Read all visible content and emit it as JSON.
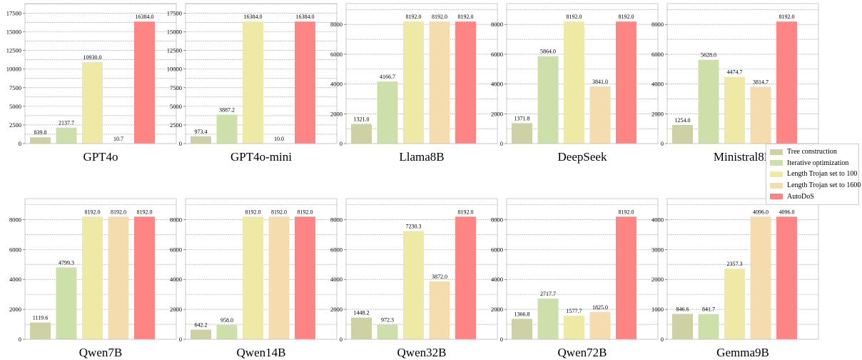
{
  "legend": {
    "items": [
      {
        "label": "Tree construction",
        "color": "#cdd1a4"
      },
      {
        "label": "Iterative optimization",
        "color": "#cde0aa"
      },
      {
        "label": "Length Trojan set to 100",
        "color": "#efe9a6"
      },
      {
        "label": "Length Trojan set to 1600",
        "color": "#f4dcae"
      },
      {
        "label": "AutoDoS",
        "color": "#ff8484"
      }
    ],
    "placement": "right"
  },
  "chart_data": [
    {
      "type": "bar",
      "title": "GPT4o",
      "series": [
        {
          "name": "Tree construction",
          "values": [
            839.8
          ]
        },
        {
          "name": "Iterative optimization",
          "values": [
            2137.7
          ]
        },
        {
          "name": "Length Trojan set to 100",
          "values": [
            10930.0
          ]
        },
        {
          "name": "Length Trojan set to 1600",
          "values": [
            10.7
          ]
        },
        {
          "name": "AutoDoS",
          "values": [
            16384.0
          ]
        }
      ],
      "value_labels": [
        "839.8",
        "2137.7",
        "10930.0",
        "10.7",
        "16384.0"
      ],
      "ylim": [
        0,
        18800
      ],
      "yticks": [
        "0",
        "2500",
        "5000",
        "7500",
        "10000",
        "12500",
        "15000",
        "17500"
      ],
      "ytick_values": [
        0,
        2500,
        5000,
        7500,
        10000,
        12500,
        15000,
        17500
      ],
      "grid": "horizontal-dashed"
    },
    {
      "type": "bar",
      "title": "GPT4o-mini",
      "series": [
        {
          "name": "Tree construction",
          "values": [
            973.4
          ]
        },
        {
          "name": "Iterative optimization",
          "values": [
            3887.2
          ]
        },
        {
          "name": "Length Trojan set to 100",
          "values": [
            16384.0
          ]
        },
        {
          "name": "Length Trojan set to 1600",
          "values": [
            10.0
          ]
        },
        {
          "name": "AutoDoS",
          "values": [
            16384.0
          ]
        }
      ],
      "value_labels": [
        "973.4",
        "3887.2",
        "16384.0",
        "10.0",
        "16384.0"
      ],
      "ylim": [
        0,
        18800
      ],
      "yticks": [
        "0",
        "2500",
        "5000",
        "7500",
        "10000",
        "12500",
        "15000",
        "17500"
      ],
      "ytick_values": [
        0,
        2500,
        5000,
        7500,
        10000,
        12500,
        15000,
        17500
      ],
      "grid": "horizontal-dashed"
    },
    {
      "type": "bar",
      "title": "Llama8B",
      "series": [
        {
          "name": "Tree construction",
          "values": [
            1321.0
          ]
        },
        {
          "name": "Iterative optimization",
          "values": [
            4166.7
          ]
        },
        {
          "name": "Length Trojan set to 100",
          "values": [
            8192.0
          ]
        },
        {
          "name": "Length Trojan set to 1600",
          "values": [
            8192.0
          ]
        },
        {
          "name": "AutoDoS",
          "values": [
            8192.0
          ]
        }
      ],
      "value_labels": [
        "1321.0",
        "4166.7",
        "8192.0",
        "8192.0",
        "8192.0"
      ],
      "ylim": [
        0,
        9400
      ],
      "yticks": [
        "0",
        "2000",
        "4000",
        "6000",
        "8000"
      ],
      "ytick_values": [
        0,
        2000,
        4000,
        6000,
        8000
      ],
      "grid": "horizontal-dashed"
    },
    {
      "type": "bar",
      "title": "DeepSeek",
      "series": [
        {
          "name": "Tree construction",
          "values": [
            1371.8
          ]
        },
        {
          "name": "Iterative optimization",
          "values": [
            5864.0
          ]
        },
        {
          "name": "Length Trojan set to 100",
          "values": [
            8192.0
          ]
        },
        {
          "name": "Length Trojan set to 1600",
          "values": [
            3841.0
          ]
        },
        {
          "name": "AutoDoS",
          "values": [
            8192.0
          ]
        }
      ],
      "value_labels": [
        "1371.8",
        "5864.0",
        "8192.0",
        "3841.0",
        "8192.0"
      ],
      "ylim": [
        0,
        9400
      ],
      "yticks": [
        "0",
        "2000",
        "4000",
        "6000",
        "8000"
      ],
      "ytick_values": [
        0,
        2000,
        4000,
        6000,
        8000
      ],
      "grid": "horizontal-dashed"
    },
    {
      "type": "bar",
      "title": "Ministral8B",
      "series": [
        {
          "name": "Tree construction",
          "values": [
            1254.0
          ]
        },
        {
          "name": "Iterative optimization",
          "values": [
            5628.0
          ]
        },
        {
          "name": "Length Trojan set to 100",
          "values": [
            4474.7
          ]
        },
        {
          "name": "Length Trojan set to 1600",
          "values": [
            3814.7
          ]
        },
        {
          "name": "AutoDoS",
          "values": [
            8192.0
          ]
        }
      ],
      "value_labels": [
        "1254.0",
        "5628.0",
        "4474.7",
        "3814.7",
        "8192.0"
      ],
      "ylim": [
        0,
        9400
      ],
      "yticks": [
        "0",
        "2000",
        "4000",
        "6000",
        "8000"
      ],
      "ytick_values": [
        0,
        2000,
        4000,
        6000,
        8000
      ],
      "grid": "horizontal-dashed"
    },
    {
      "type": "bar",
      "title": "Qwen7B",
      "series": [
        {
          "name": "Tree construction",
          "values": [
            1119.6
          ]
        },
        {
          "name": "Iterative optimization",
          "values": [
            4799.3
          ]
        },
        {
          "name": "Length Trojan set to 100",
          "values": [
            8192.0
          ]
        },
        {
          "name": "Length Trojan set to 1600",
          "values": [
            8192.0
          ]
        },
        {
          "name": "AutoDoS",
          "values": [
            8192.0
          ]
        }
      ],
      "value_labels": [
        "1119.6",
        "4799.3",
        "8192.0",
        "8192.0",
        "8192.0"
      ],
      "ylim": [
        0,
        9400
      ],
      "yticks": [
        "0",
        "2000",
        "4000",
        "6000",
        "8000"
      ],
      "ytick_values": [
        0,
        2000,
        4000,
        6000,
        8000
      ],
      "grid": "horizontal-dashed"
    },
    {
      "type": "bar",
      "title": "Qwen14B",
      "series": [
        {
          "name": "Tree construction",
          "values": [
            642.2
          ]
        },
        {
          "name": "Iterative optimization",
          "values": [
            958.0
          ]
        },
        {
          "name": "Length Trojan set to 100",
          "values": [
            8192.0
          ]
        },
        {
          "name": "Length Trojan set to 1600",
          "values": [
            8192.0
          ]
        },
        {
          "name": "AutoDoS",
          "values": [
            8192.0
          ]
        }
      ],
      "value_labels": [
        "642.2",
        "958.0",
        "8192.0",
        "8192.0",
        "8192.0"
      ],
      "ylim": [
        0,
        9400
      ],
      "yticks": [
        "0",
        "2000",
        "4000",
        "6000",
        "8000"
      ],
      "ytick_values": [
        0,
        2000,
        4000,
        6000,
        8000
      ],
      "grid": "horizontal-dashed"
    },
    {
      "type": "bar",
      "title": "Qwen32B",
      "series": [
        {
          "name": "Tree construction",
          "values": [
            1448.2
          ]
        },
        {
          "name": "Iterative optimization",
          "values": [
            972.3
          ]
        },
        {
          "name": "Length Trojan set to 100",
          "values": [
            7230.3
          ]
        },
        {
          "name": "Length Trojan set to 1600",
          "values": [
            3872.0
          ]
        },
        {
          "name": "AutoDoS",
          "values": [
            8192.0
          ]
        }
      ],
      "value_labels": [
        "1448.2",
        "972.3",
        "7230.3",
        "3872.0",
        "8192.0"
      ],
      "ylim": [
        0,
        9400
      ],
      "yticks": [
        "0",
        "2000",
        "4000",
        "6000",
        "8000"
      ],
      "ytick_values": [
        0,
        2000,
        4000,
        6000,
        8000
      ],
      "grid": "horizontal-dashed"
    },
    {
      "type": "bar",
      "title": "Qwen72B",
      "series": [
        {
          "name": "Tree construction",
          "values": [
            1366.8
          ]
        },
        {
          "name": "Iterative optimization",
          "values": [
            2717.7
          ]
        },
        {
          "name": "Length Trojan set to 100",
          "values": [
            1577.7
          ]
        },
        {
          "name": "Length Trojan set to 1600",
          "values": [
            1825.0
          ]
        },
        {
          "name": "AutoDoS",
          "values": [
            8192.0
          ]
        }
      ],
      "value_labels": [
        "1366.8",
        "2717.7",
        "1577.7",
        "1825.0",
        "8192.0"
      ],
      "ylim": [
        0,
        9400
      ],
      "yticks": [
        "0",
        "2000",
        "4000",
        "6000",
        "8000"
      ],
      "ytick_values": [
        0,
        2000,
        4000,
        6000,
        8000
      ],
      "grid": "horizontal-dashed"
    },
    {
      "type": "bar",
      "title": "Gemma9B",
      "series": [
        {
          "name": "Tree construction",
          "values": [
            846.6
          ]
        },
        {
          "name": "Iterative optimization",
          "values": [
            841.7
          ]
        },
        {
          "name": "Length Trojan set to 100",
          "values": [
            2357.3
          ]
        },
        {
          "name": "Length Trojan set to 1600",
          "values": [
            4096.0
          ]
        },
        {
          "name": "AutoDoS",
          "values": [
            4096.0
          ]
        }
      ],
      "value_labels": [
        "846.6",
        "841.7",
        "2357.3",
        "4096.0",
        "4096.0"
      ],
      "ylim": [
        0,
        4700
      ],
      "yticks": [
        "0",
        "1000",
        "2000",
        "3000",
        "4000"
      ],
      "ytick_values": [
        0,
        1000,
        2000,
        3000,
        4000
      ],
      "grid": "horizontal-dashed"
    }
  ]
}
